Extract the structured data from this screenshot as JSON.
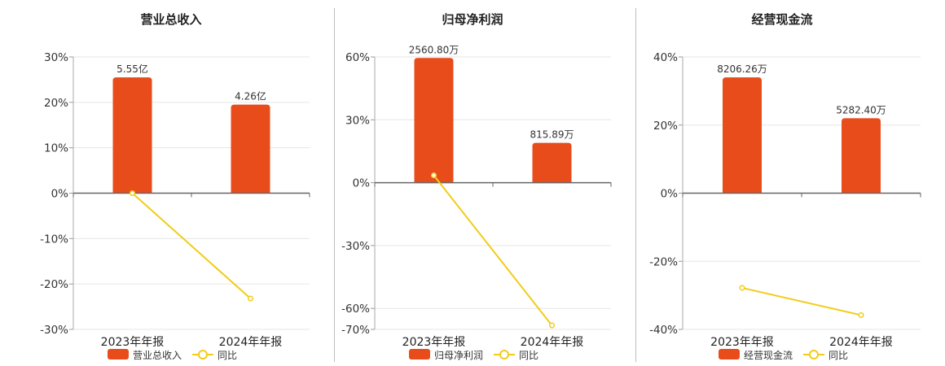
{
  "chart_data": [
    {
      "type": "bar",
      "title": "营业总收入",
      "categories": [
        "2023年年报",
        "2024年年报"
      ],
      "series": [
        {
          "name": "营业总收入",
          "type": "bar",
          "axis": "left",
          "values": [
            25.5,
            19.5
          ],
          "labels": [
            "5.55亿",
            "4.26亿"
          ]
        },
        {
          "name": "同比",
          "type": "line",
          "axis": "left",
          "values": [
            0,
            -23.2
          ]
        }
      ],
      "ylim": [
        -30,
        30
      ],
      "yticks": [
        30,
        20,
        10,
        0,
        -10,
        -20,
        -30
      ],
      "ytick_labels": [
        "30%",
        "20%",
        "10%",
        "0%",
        "-10%",
        "-20%",
        "-30%"
      ],
      "grid": true,
      "legend": "bottom",
      "colors": {
        "bar": "#e84c1b",
        "line": "#f2cc18"
      }
    },
    {
      "type": "bar",
      "title": "归母净利润",
      "categories": [
        "2023年年报",
        "2024年年报"
      ],
      "series": [
        {
          "name": "归母净利润",
          "type": "bar",
          "axis": "left",
          "values": [
            59.5,
            19
          ],
          "labels": [
            "2560.80万",
            "815.89万"
          ]
        },
        {
          "name": "同比",
          "type": "line",
          "axis": "left",
          "values": [
            3.5,
            -68.1
          ]
        }
      ],
      "ylim": [
        -70,
        60
      ],
      "yticks": [
        60,
        30,
        0,
        -30,
        -60,
        -70
      ],
      "ytick_labels": [
        "60%",
        "30%",
        "0%",
        "-30%",
        "-60%",
        "-70%"
      ],
      "grid": true,
      "legend": "bottom",
      "colors": {
        "bar": "#e84c1b",
        "line": "#f2cc18"
      }
    },
    {
      "type": "bar",
      "title": "经营现金流",
      "categories": [
        "2023年年报",
        "2024年年报"
      ],
      "series": [
        {
          "name": "经营现金流",
          "type": "bar",
          "axis": "left",
          "values": [
            34,
            22
          ],
          "labels": [
            "8206.26万",
            "5282.40万"
          ]
        },
        {
          "name": "同比",
          "type": "line",
          "axis": "left",
          "values": [
            -27.8,
            -35.8
          ]
        }
      ],
      "ylim": [
        -40,
        40
      ],
      "yticks": [
        40,
        20,
        0,
        -20,
        -40
      ],
      "ytick_labels": [
        "40%",
        "20%",
        "0%",
        "-20%",
        "-40%"
      ],
      "grid": true,
      "legend": "bottom",
      "colors": {
        "bar": "#e84c1b",
        "line": "#f2cc18"
      }
    }
  ]
}
